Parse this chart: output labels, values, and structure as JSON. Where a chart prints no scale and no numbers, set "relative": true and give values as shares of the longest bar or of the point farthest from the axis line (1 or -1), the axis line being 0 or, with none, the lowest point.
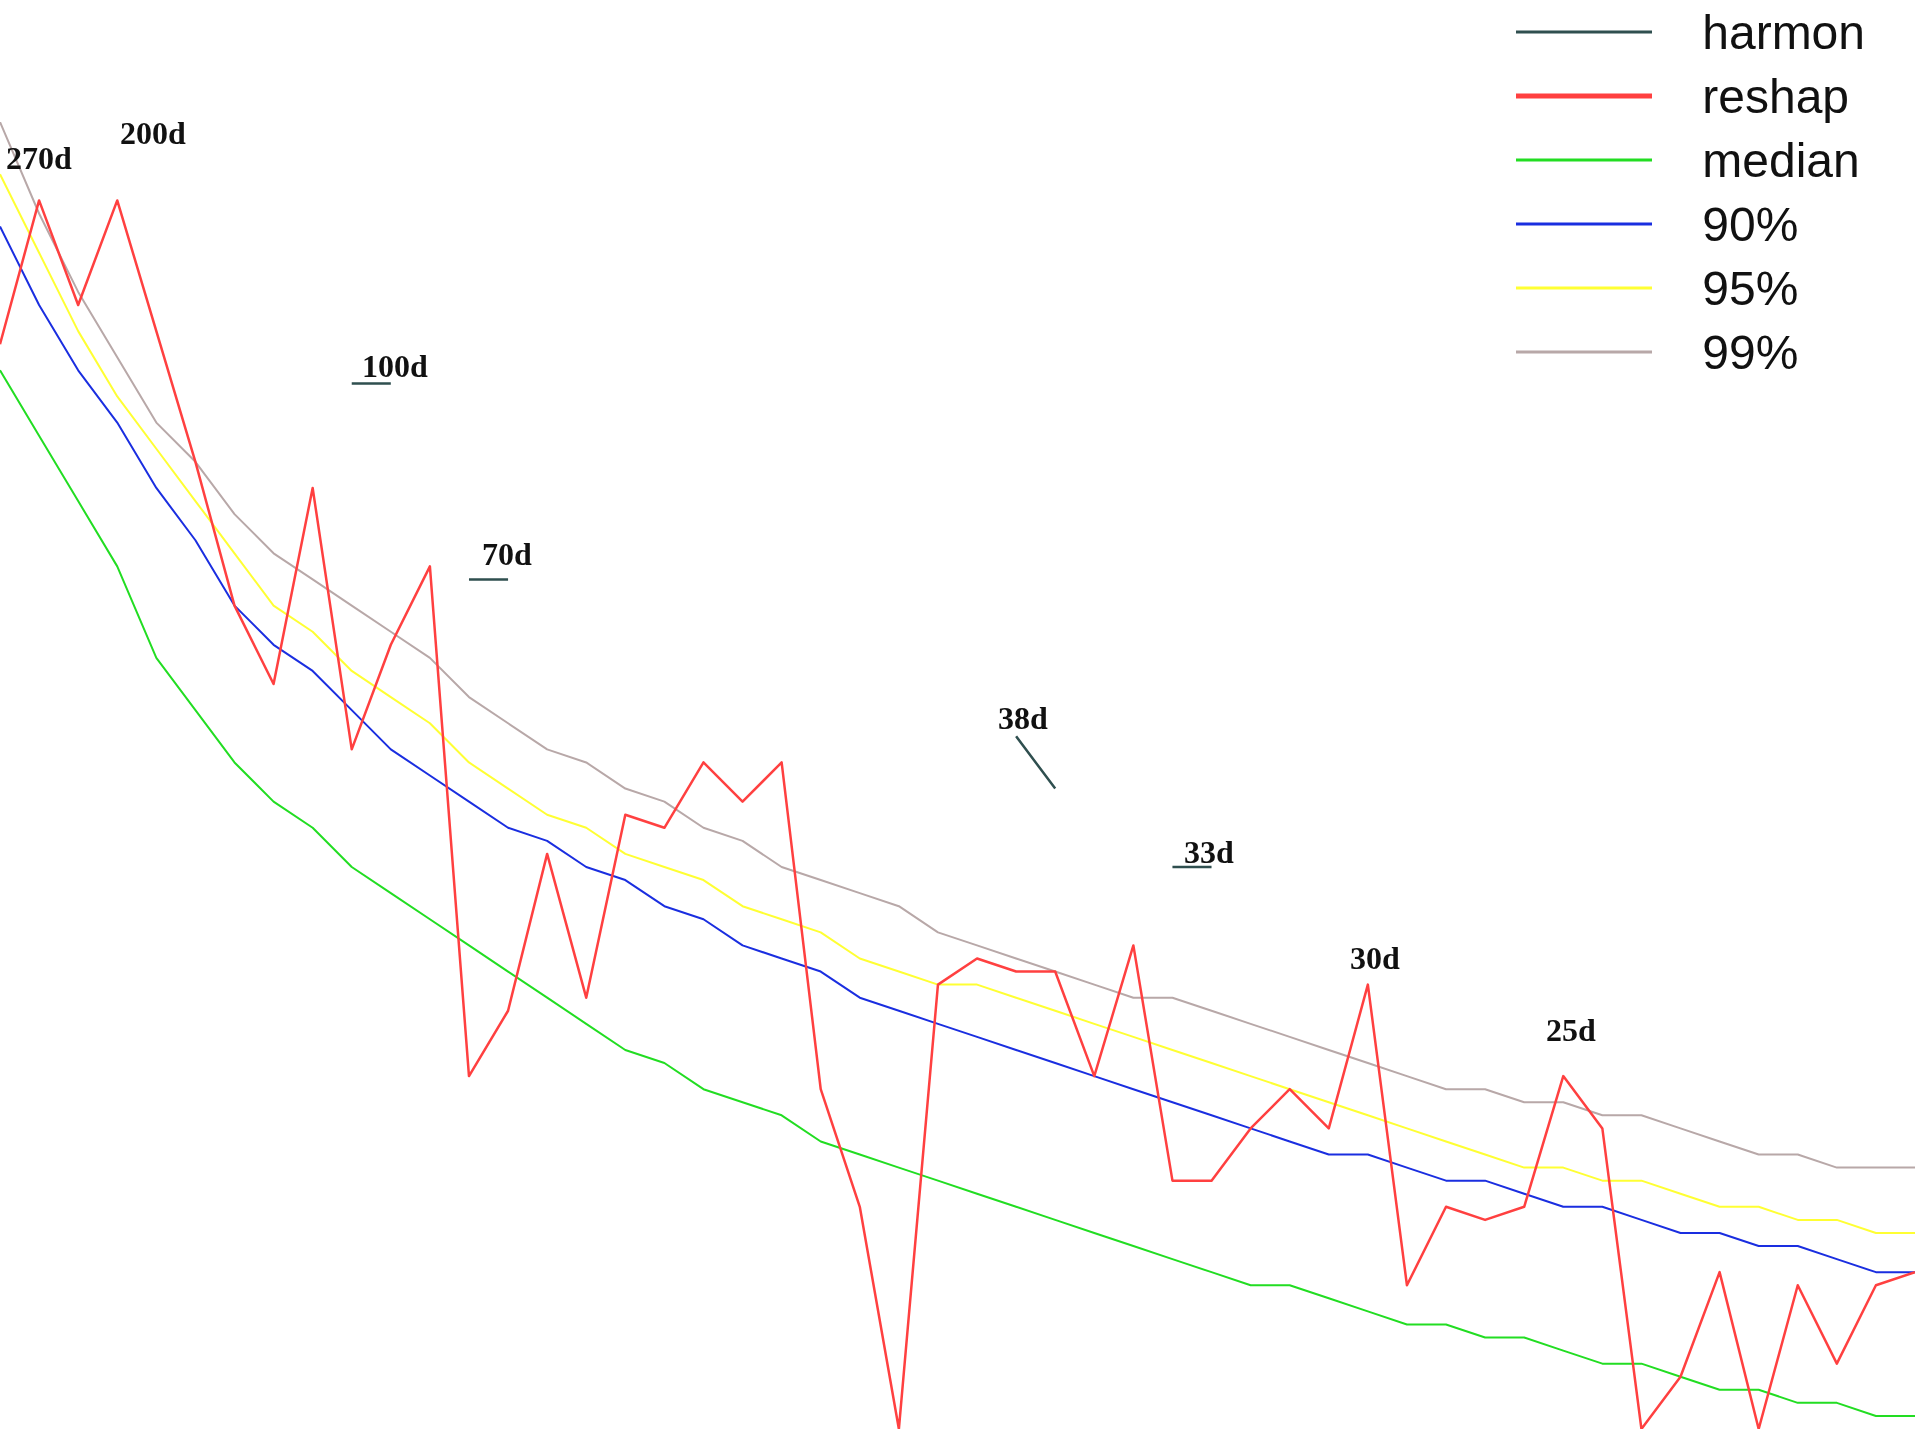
{
  "chart_data": {
    "type": "line",
    "relative": true,
    "tick_labels": false,
    "legend": "top right",
    "marker": "none",
    "categories": [
      null,
      null,
      null,
      null,
      null,
      null,
      null,
      null,
      null,
      null,
      null,
      null,
      null,
      null,
      null,
      null,
      null,
      null,
      null,
      null,
      null,
      null,
      null,
      null,
      null,
      null,
      null,
      null,
      null,
      null,
      null,
      null,
      null,
      null,
      null,
      null,
      null,
      null,
      null,
      null,
      null,
      null,
      null,
      null,
      null,
      null,
      null,
      null,
      null,
      null
    ],
    "series": [
      {
        "name": "harmon",
        "color": "#2f4f4f",
        "values": [
          null,
          null,
          null,
          null,
          null,
          null,
          null,
          null,
          null,
          0.8,
          0.8,
          null,
          0.65,
          0.65,
          null,
          null,
          null,
          null,
          null,
          null,
          null,
          null,
          null,
          null,
          null,
          null,
          0.53,
          0.49,
          null,
          null,
          0.43,
          0.43,
          null,
          null,
          null,
          null,
          null,
          null,
          null,
          null,
          null,
          null,
          null,
          null,
          null,
          null,
          null,
          null,
          null,
          null
        ]
      },
      {
        "name": "reshap",
        "color": "#ff4040",
        "values": [
          0.83,
          0.94,
          0.86,
          0.94,
          0.84,
          0.74,
          0.63,
          0.57,
          0.72,
          0.52,
          0.6,
          0.66,
          0.27,
          0.32,
          0.44,
          0.33,
          0.47,
          0.46,
          0.51,
          0.48,
          0.51,
          0.26,
          0.17,
          0.0,
          0.34,
          0.36,
          0.35,
          0.35,
          0.27,
          0.37,
          0.19,
          0.19,
          0.23,
          0.26,
          0.23,
          0.34,
          0.11,
          0.17,
          0.16,
          0.17,
          0.27,
          0.23,
          0.0,
          0.04,
          0.12,
          0.0,
          0.11,
          0.05,
          0.11,
          0.12
        ]
      },
      {
        "name": "median",
        "color": "#22dd22",
        "values": [
          0.81,
          0.76,
          0.71,
          0.66,
          0.59,
          0.55,
          0.51,
          0.48,
          0.46,
          0.43,
          0.41,
          0.39,
          0.37,
          0.35,
          0.33,
          0.31,
          0.29,
          0.28,
          0.26,
          0.25,
          0.24,
          0.22,
          0.21,
          0.2,
          0.19,
          0.18,
          0.17,
          0.16,
          0.15,
          0.14,
          0.13,
          0.12,
          0.11,
          0.11,
          0.1,
          0.09,
          0.08,
          0.08,
          0.07,
          0.07,
          0.06,
          0.05,
          0.05,
          0.04,
          0.03,
          0.03,
          0.02,
          0.02,
          0.01,
          0.01
        ]
      },
      {
        "name": "90%",
        "color": "#1a2ee0",
        "values": [
          0.92,
          0.86,
          0.81,
          0.77,
          0.72,
          0.68,
          0.63,
          0.6,
          0.58,
          0.55,
          0.52,
          0.5,
          0.48,
          0.46,
          0.45,
          0.43,
          0.42,
          0.4,
          0.39,
          0.37,
          0.36,
          0.35,
          0.33,
          0.32,
          0.31,
          0.3,
          0.29,
          0.28,
          0.27,
          0.26,
          0.25,
          0.24,
          0.23,
          0.22,
          0.21,
          0.21,
          0.2,
          0.19,
          0.19,
          0.18,
          0.17,
          0.17,
          0.16,
          0.15,
          0.15,
          0.14,
          0.14,
          0.13,
          0.12,
          0.12
        ]
      },
      {
        "name": "95%",
        "color": "#ffff33",
        "values": [
          0.96,
          0.9,
          0.84,
          0.79,
          0.75,
          0.71,
          0.67,
          0.63,
          0.61,
          0.58,
          0.56,
          0.54,
          0.51,
          0.49,
          0.47,
          0.46,
          0.44,
          0.43,
          0.42,
          0.4,
          0.39,
          0.38,
          0.36,
          0.35,
          0.34,
          0.34,
          0.33,
          0.32,
          0.31,
          0.3,
          0.29,
          0.28,
          0.27,
          0.26,
          0.25,
          0.24,
          0.23,
          0.22,
          0.21,
          0.2,
          0.2,
          0.19,
          0.19,
          0.18,
          0.17,
          0.17,
          0.16,
          0.16,
          0.15,
          0.15
        ]
      },
      {
        "name": "99%",
        "color": "#b8a8a8",
        "values": [
          1.0,
          0.93,
          0.87,
          0.82,
          0.77,
          0.74,
          0.7,
          0.67,
          0.65,
          0.63,
          0.61,
          0.59,
          0.56,
          0.54,
          0.52,
          0.51,
          0.49,
          0.48,
          0.46,
          0.45,
          0.43,
          0.42,
          0.41,
          0.4,
          0.38,
          0.37,
          0.36,
          0.35,
          0.34,
          0.33,
          0.33,
          0.32,
          0.31,
          0.3,
          0.29,
          0.28,
          0.27,
          0.26,
          0.26,
          0.25,
          0.25,
          0.24,
          0.24,
          0.23,
          0.22,
          0.21,
          0.21,
          0.2,
          0.2,
          0.2
        ]
      }
    ],
    "annotations": [
      "270d",
      "200d",
      "100d",
      "70d",
      "38d",
      "33d",
      "30d",
      "25d"
    ]
  }
}
